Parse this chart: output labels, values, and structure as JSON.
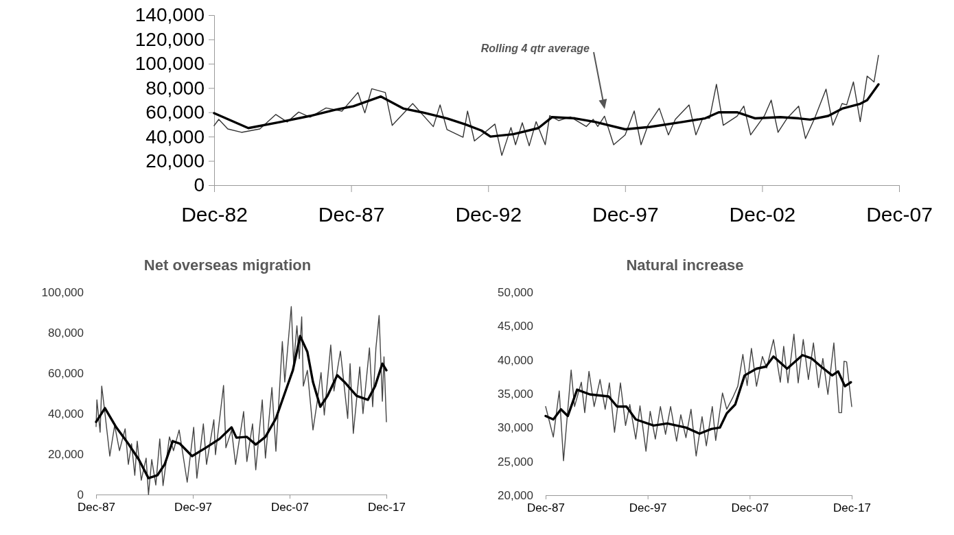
{
  "chart_data": [
    {
      "type": "line",
      "xlim": [
        "1982-12",
        "2007-12"
      ],
      "xticks": [
        {
          "value": "1982-12",
          "label": "Dec-82"
        },
        {
          "value": "1987-12",
          "label": "Dec-87"
        },
        {
          "value": "1992-12",
          "label": "Dec-92"
        },
        {
          "value": "1997-12",
          "label": "Dec-97"
        },
        {
          "value": "2002-12",
          "label": "Dec-02"
        },
        {
          "value": "2007-12",
          "label": "Dec-07"
        }
      ],
      "ylim": [
        0,
        140000
      ],
      "yticks": [
        0,
        {
          "value": 20000,
          "label": "20,000"
        },
        {
          "value": 40000,
          "label": "40,000"
        },
        {
          "value": 60000,
          "label": "60,000"
        },
        {
          "value": 80000,
          "label": "80,000"
        },
        {
          "value": 100000,
          "label": "100,000"
        },
        {
          "value": 120000,
          "label": "120,000"
        },
        {
          "value": 140000,
          "label": "140,000"
        }
      ],
      "annotations": [
        "Rolling 4 qtr average"
      ],
      "series": [
        {
          "color": "#333333",
          "x": [
            "1982-12",
            "1983-02",
            "1983-06",
            "1983-12",
            "1984-08",
            "1985-03",
            "1985-08",
            "1986-01",
            "1986-06",
            "1987-01",
            "1987-08",
            "1988-03",
            "1988-06",
            "1988-09",
            "1989-03",
            "1989-06",
            "1990-03",
            "1990-12",
            "1991-03",
            "1991-06",
            "1992-01",
            "1992-03",
            "1992-06",
            "1993-03",
            "1993-06",
            "1993-10",
            "1993-12",
            "1994-03",
            "1994-06",
            "1994-09",
            "1995-01",
            "1995-03",
            "1995-07",
            "1995-12",
            "1996-07",
            "1996-10",
            "1996-12",
            "1997-03",
            "1997-07",
            "1997-12",
            "1998-04",
            "1998-07",
            "1998-10",
            "1999-03",
            "1999-07",
            "1999-10",
            "2000-04",
            "2000-07",
            "2000-10",
            "2001-01",
            "2001-04",
            "2001-07",
            "2002-01",
            "2002-04",
            "2002-07",
            "2003-01",
            "2003-04",
            "2003-07",
            "2003-11",
            "2004-04",
            "2004-07",
            "2004-11",
            "2005-04",
            "2005-07",
            "2005-11",
            "2006-01",
            "2006-04",
            "2006-07",
            "2006-10",
            "2007-01",
            "2007-03"
          ],
          "values": [
            49000,
            54200,
            46300,
            43500,
            46300,
            58200,
            52000,
            60200,
            56000,
            63600,
            61000,
            76300,
            59500,
            79400,
            76300,
            49200,
            67200,
            48200,
            66100,
            45800,
            39500,
            61000,
            36400,
            50300,
            24500,
            47500,
            33300,
            51400,
            32400,
            52300,
            33300,
            57200,
            53200,
            56200,
            48300,
            54200,
            48300,
            56800,
            33300,
            41400,
            61100,
            33300,
            49300,
            63300,
            41400,
            54200,
            66100,
            41400,
            55200,
            55200,
            83000,
            49300,
            56800,
            65100,
            41400,
            57200,
            70000,
            43500,
            55200,
            65100,
            38400,
            55200,
            79100,
            49300,
            67200,
            66100,
            85000,
            52300,
            89800,
            85000,
            106800
          ]
        },
        {
          "color": "#000000",
          "x": [
            "1982-12",
            "1984-03",
            "1985-05",
            "1986-06",
            "1987-05",
            "1988-01",
            "1989-01",
            "1989-11",
            "1990-07",
            "1991-06",
            "1992-02",
            "1992-09",
            "1993-01",
            "1993-11",
            "1994-10",
            "1995-04",
            "1996-02",
            "1996-11",
            "1997-12",
            "1998-11",
            "2000-01",
            "2000-11",
            "2001-05",
            "2002-01",
            "2002-09",
            "2003-08",
            "2004-04",
            "2004-09",
            "2005-05",
            "2005-11",
            "2006-07",
            "2006-10",
            "2007-03"
          ],
          "values": [
            59300,
            47000,
            52000,
            57000,
            62000,
            65000,
            73000,
            63000,
            60000,
            55000,
            50000,
            45000,
            40000,
            42000,
            47000,
            56000,
            55000,
            52000,
            46000,
            48000,
            52000,
            55000,
            60000,
            60000,
            55000,
            56000,
            55000,
            54000,
            57000,
            63000,
            67000,
            70000,
            83000
          ]
        }
      ]
    },
    {
      "type": "line",
      "title": "Net overseas migration",
      "xlim": [
        "1987-12",
        "2017-12"
      ],
      "xticks": [
        {
          "value": "1987-12",
          "label": "Dec-87"
        },
        {
          "value": "1997-12",
          "label": "Dec-97"
        },
        {
          "value": "2007-12",
          "label": "Dec-07"
        },
        {
          "value": "2017-12",
          "label": "Dec-17"
        }
      ],
      "ylim": [
        0,
        100000
      ],
      "yticks": [
        0,
        {
          "value": 20000,
          "label": "20,000"
        },
        {
          "value": 40000,
          "label": "40,000"
        },
        {
          "value": 60000,
          "label": "60,000"
        },
        {
          "value": 80000,
          "label": "80,000"
        },
        {
          "value": 100000,
          "label": "100,000"
        }
      ],
      "series": [
        {
          "color": "#444444",
          "x": [
            "1987-12",
            "1988-01",
            "1988-05",
            "1988-07",
            "1988-11",
            "1989-05",
            "1989-11",
            "1990-05",
            "1990-12",
            "1991-04",
            "1991-08",
            "1991-12",
            "1992-03",
            "1992-08",
            "1993-02",
            "1993-05",
            "1993-09",
            "1994-02",
            "1994-07",
            "1994-11",
            "1995-07",
            "1995-12",
            "1996-07",
            "1997-05",
            "1998-01",
            "1998-05",
            "1999-01",
            "1999-05",
            "2000-02",
            "2000-04",
            "2001-02",
            "2001-05",
            "2001-12",
            "2002-05",
            "2003-03",
            "2003-07",
            "2004-02",
            "2004-06",
            "2005-02",
            "2005-06",
            "2006-02",
            "2006-07",
            "2007-03",
            "2007-06",
            "2008-02",
            "2008-05",
            "2008-09",
            "2008-12",
            "2009-03",
            "2009-05",
            "2009-10",
            "2010-05",
            "2010-10",
            "2011-03",
            "2011-07",
            "2012-03",
            "2012-07",
            "2013-03",
            "2013-12",
            "2014-03",
            "2014-07",
            "2015-03",
            "2015-07",
            "2016-03",
            "2016-07",
            "2016-11",
            "2017-03",
            "2017-07",
            "2017-09",
            "2017-12"
          ],
          "values": [
            33600,
            46800,
            30800,
            53600,
            40000,
            19000,
            34200,
            21700,
            32500,
            14900,
            25100,
            9500,
            26400,
            7100,
            18000,
            0,
            17300,
            4700,
            27500,
            4400,
            28500,
            21700,
            31900,
            6100,
            33200,
            8100,
            34900,
            14900,
            37000,
            19700,
            53900,
            23100,
            31900,
            14900,
            41000,
            16300,
            34900,
            12200,
            46800,
            18000,
            52900,
            21400,
            75600,
            55600,
            92900,
            64700,
            83400,
            67100,
            87800,
            53600,
            61400,
            31900,
            45400,
            60300,
            39300,
            73900,
            51200,
            70900,
            37600,
            64700,
            30200,
            63100,
            40000,
            72500,
            43400,
            72500,
            88500,
            46100,
            68100,
            35900
          ]
        },
        {
          "color": "#000000",
          "x": [
            "1987-12",
            "1988-11",
            "1990-01",
            "1991-04",
            "1992-05",
            "1993-05",
            "1994-04",
            "1995-01",
            "1995-11",
            "1996-08",
            "1997-11",
            "1999-04",
            "2000-09",
            "2001-12",
            "2002-06",
            "2003-07",
            "2004-06",
            "2005-06",
            "2006-07",
            "2007-07",
            "2008-04",
            "2009-01",
            "2009-10",
            "2010-05",
            "2011-02",
            "2011-11",
            "2012-11",
            "2013-08",
            "2014-11",
            "2016-01",
            "2016-10",
            "2017-07",
            "2017-12"
          ],
          "values": [
            35900,
            42700,
            33200,
            25100,
            17300,
            8100,
            9500,
            14900,
            26400,
            25100,
            19000,
            23100,
            27500,
            33200,
            28100,
            28500,
            24700,
            28500,
            37600,
            51200,
            61400,
            78300,
            70500,
            55600,
            43400,
            48800,
            59000,
            55600,
            48800,
            46800,
            53600,
            64700,
            61400
          ]
        }
      ]
    },
    {
      "type": "line",
      "title": "Natural increase",
      "xlim": [
        "1987-12",
        "2017-12"
      ],
      "xticks": [
        {
          "value": "1987-12",
          "label": "Dec-87"
        },
        {
          "value": "1997-12",
          "label": "Dec-97"
        },
        {
          "value": "2007-12",
          "label": "Dec-07"
        },
        {
          "value": "2017-12",
          "label": "Dec-17"
        }
      ],
      "ylim": [
        20000,
        50000
      ],
      "yticks": [
        {
          "value": 20000,
          "label": "20,000"
        },
        {
          "value": 25000,
          "label": "25,000"
        },
        {
          "value": 30000,
          "label": "30,000"
        },
        {
          "value": 35000,
          "label": "35,000"
        },
        {
          "value": 40000,
          "label": "40,000"
        },
        {
          "value": 45000,
          "label": "45,000"
        },
        {
          "value": 50000,
          "label": "50,000"
        }
      ],
      "series": [
        {
          "color": "#444444",
          "x": [
            "1987-12",
            "1988-09",
            "1989-04",
            "1989-09",
            "1990-06",
            "1990-10",
            "1991-06",
            "1991-10",
            "1992-03",
            "1992-09",
            "1993-04",
            "1993-10",
            "1994-03",
            "1994-09",
            "1995-04",
            "1995-10",
            "1996-03",
            "1996-10",
            "1997-03",
            "1997-10",
            "1998-03",
            "1998-09",
            "1999-03",
            "1999-09",
            "2000-03",
            "2000-10",
            "2001-03",
            "2001-09",
            "2002-03",
            "2002-09",
            "2003-04",
            "2003-09",
            "2004-04",
            "2004-08",
            "2005-04",
            "2005-09",
            "2006-04",
            "2006-10",
            "2007-04",
            "2007-09",
            "2008-02",
            "2008-08",
            "2009-03",
            "2009-08",
            "2010-04",
            "2010-12",
            "2011-04",
            "2011-09",
            "2012-04",
            "2012-09",
            "2013-03",
            "2013-09",
            "2014-03",
            "2014-09",
            "2015-02",
            "2015-08",
            "2016-03",
            "2016-09",
            "2016-12",
            "2017-03",
            "2017-06",
            "2017-12"
          ],
          "values": [
            33100,
            28600,
            35400,
            25100,
            38500,
            33100,
            36700,
            32200,
            38300,
            33100,
            37100,
            32700,
            36600,
            29300,
            36600,
            30300,
            33400,
            28300,
            33200,
            26500,
            32400,
            28300,
            33100,
            29000,
            33100,
            28000,
            31900,
            28500,
            32700,
            25800,
            31600,
            27300,
            33100,
            28100,
            35100,
            32700,
            34400,
            36100,
            40800,
            36200,
            41700,
            36100,
            40500,
            38800,
            43000,
            36700,
            42000,
            36600,
            43800,
            36600,
            43000,
            37100,
            42500,
            35900,
            40200,
            34900,
            42500,
            32200,
            32200,
            39800,
            39700,
            33100
          ]
        },
        {
          "color": "#000000",
          "x": [
            "1987-12",
            "1988-09",
            "1989-06",
            "1990-02",
            "1991-01",
            "1992-04",
            "1994-02",
            "1994-12",
            "1995-11",
            "1996-10",
            "1998-07",
            "1999-11",
            "2001-09",
            "2003-01",
            "2004-03",
            "2005-01",
            "2005-09",
            "2006-07",
            "2007-06",
            "2008-08",
            "2009-07",
            "2010-04",
            "2011-08",
            "2013-02",
            "2014-01",
            "2014-12",
            "2016-01",
            "2016-08",
            "2017-04",
            "2017-11"
          ],
          "values": [
            31700,
            31200,
            32700,
            31700,
            35600,
            34900,
            34600,
            33100,
            33100,
            31200,
            30300,
            30600,
            30000,
            29100,
            29800,
            30000,
            32100,
            33400,
            37700,
            38700,
            39000,
            40500,
            38700,
            40700,
            40200,
            39000,
            37700,
            38300,
            36100,
            36700
          ]
        }
      ]
    }
  ]
}
